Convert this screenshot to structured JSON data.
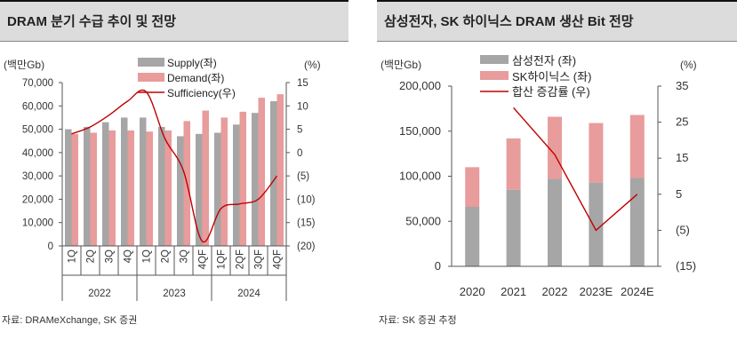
{
  "chart_data": [
    {
      "type": "bar",
      "title": "DRAM 분기 수급 추이 및 전망",
      "left_unit": "(백만Gb)",
      "right_unit": "(%)",
      "source": "자료: DRAMeXchange, SK 증권",
      "categories": [
        "1Q",
        "2Q",
        "3Q",
        "4Q",
        "1Q",
        "2Q",
        "3Q",
        "4QF",
        "1QF",
        "2QF",
        "3QF",
        "4QF"
      ],
      "years": [
        "2022",
        "2023",
        "2024"
      ],
      "left_ticks": [
        "70,000",
        "60,000",
        "50,000",
        "40,000",
        "30,000",
        "20,000",
        "10,000",
        "0"
      ],
      "right_ticks": [
        "15",
        "10",
        "5",
        "0",
        "(5)",
        "(10)",
        "(15)",
        "(20)"
      ],
      "ylim_left": [
        0,
        70000
      ],
      "ylim_right": [
        -20,
        15
      ],
      "series": [
        {
          "name": "Supply(좌)",
          "color": "#a6a6a6",
          "axis": "left",
          "values": [
            50000,
            51000,
            53000,
            55000,
            55000,
            51000,
            47000,
            48000,
            48500,
            52000,
            57000,
            62000
          ]
        },
        {
          "name": "Demand(좌)",
          "color": "#e89c9c",
          "axis": "left",
          "values": [
            48000,
            48500,
            49500,
            49500,
            49000,
            49500,
            53500,
            58000,
            55000,
            57500,
            63500,
            65000
          ]
        },
        {
          "name": "Sufficiency(우)",
          "color": "#c00000",
          "axis": "right",
          "values": [
            4,
            5.5,
            8,
            11,
            13,
            3,
            -4,
            -19,
            -12,
            -11,
            -10,
            -5
          ]
        }
      ]
    },
    {
      "type": "bar",
      "title": "삼성전자, SK 하이닉스 DRAM 생산 Bit 전망",
      "left_unit": "(백만Gb)",
      "right_unit": "(%)",
      "source": "자료: SK 증권 추정",
      "categories": [
        "2020",
        "2021",
        "2022",
        "2023E",
        "2024E"
      ],
      "left_ticks": [
        "200,000",
        "150,000",
        "100,000",
        "50,000",
        "0"
      ],
      "right_ticks": [
        "35",
        "25",
        "15",
        "5",
        "(5)",
        "(15)"
      ],
      "ylim_left": [
        0,
        200000
      ],
      "ylim_right": [
        -15,
        35
      ],
      "series": [
        {
          "name": "삼성전자 (좌)",
          "color": "#a6a6a6",
          "axis": "left",
          "stack": true,
          "values": [
            66000,
            85000,
            97000,
            93000,
            98000
          ]
        },
        {
          "name": "SK하이닉스 (좌)",
          "color": "#e89c9c",
          "axis": "left",
          "stack": true,
          "values": [
            44000,
            57000,
            69000,
            66000,
            70000
          ]
        },
        {
          "name": "합산 증감률 (우)",
          "color": "#c00000",
          "axis": "right",
          "values": [
            null,
            29,
            16,
            -5,
            5
          ]
        }
      ]
    }
  ]
}
